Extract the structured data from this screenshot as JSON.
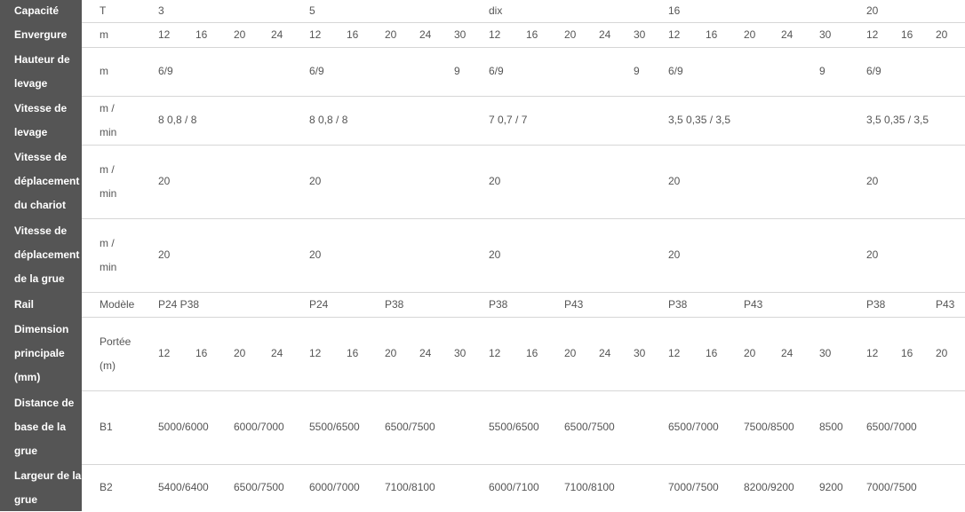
{
  "rows": [
    {
      "label": [
        "Capacité"
      ],
      "cells": [
        {
          "t": "T"
        },
        {
          "t": "3"
        },
        {
          "t": "5"
        },
        {
          "t": "dix"
        },
        {
          "t": "16"
        },
        {
          "t": "20"
        }
      ]
    },
    {
      "label": [
        "Envergure"
      ],
      "cells": [
        {
          "t": "m"
        },
        {
          "t": "12"
        },
        {
          "t": "16"
        },
        {
          "t": "20"
        },
        {
          "t": "24"
        },
        {
          "t": "12"
        },
        {
          "t": "16"
        },
        {
          "t": "20"
        },
        {
          "t": "24"
        },
        {
          "t": "30"
        },
        {
          "t": "12"
        },
        {
          "t": "16"
        },
        {
          "t": "20"
        },
        {
          "t": "24"
        },
        {
          "t": "30"
        },
        {
          "t": "12"
        },
        {
          "t": "16"
        },
        {
          "t": "20"
        },
        {
          "t": "24"
        },
        {
          "t": "30"
        },
        {
          "t": "12"
        },
        {
          "t": "16"
        },
        {
          "t": "20"
        }
      ]
    },
    {
      "label": [
        "Hauteur de",
        "levage"
      ],
      "cells": [
        {
          "t": "m"
        },
        {
          "t": "6/9"
        },
        {
          "t": "6/9"
        },
        {
          "t": "9"
        },
        {
          "t": "6/9"
        },
        {
          "t": "9"
        },
        {
          "t": "6/9"
        },
        {
          "t": "9"
        },
        {
          "t": "6/9"
        }
      ]
    },
    {
      "label": [
        "Vitesse de",
        "levage"
      ],
      "cells": [
        {
          "t": "m /\nmin"
        },
        {
          "t": "8 0,8 / 8"
        },
        {
          "t": "8 0,8 / 8"
        },
        {
          "t": "7 0,7 / 7"
        },
        {
          "t": "3,5 0,35 / 3,5"
        },
        {
          "t": "3,5 0,35 / 3,5"
        }
      ]
    },
    {
      "label": [
        "Vitesse de",
        "déplacement",
        "du chariot"
      ],
      "cells": [
        {
          "t": "m /\nmin"
        },
        {
          "t": "20"
        },
        {
          "t": "20"
        },
        {
          "t": "20"
        },
        {
          "t": "20"
        },
        {
          "t": "20"
        }
      ]
    },
    {
      "label": [
        "Vitesse de",
        "déplacement",
        "de la grue"
      ],
      "cells": [
        {
          "t": "m /\nmin"
        },
        {
          "t": "20"
        },
        {
          "t": "20"
        },
        {
          "t": "20"
        },
        {
          "t": "20"
        },
        {
          "t": "20"
        }
      ]
    },
    {
      "label": [
        "Rail"
      ],
      "cells": [
        {
          "t": "Modèle"
        },
        {
          "t": "P24 P38"
        },
        {
          "t": "P24"
        },
        {
          "t": "P38"
        },
        {
          "t": "P38"
        },
        {
          "t": "P43"
        },
        {
          "t": "P38"
        },
        {
          "t": "P43"
        },
        {
          "t": "P38"
        },
        {
          "t": "P43"
        }
      ]
    },
    {
      "label": [
        "Dimension",
        "principale",
        "(mm)"
      ],
      "cells": [
        {
          "t": "Portée\n(m)"
        },
        {
          "t": "12"
        },
        {
          "t": "16"
        },
        {
          "t": "20"
        },
        {
          "t": "24"
        },
        {
          "t": "12"
        },
        {
          "t": "16"
        },
        {
          "t": "20"
        },
        {
          "t": "24"
        },
        {
          "t": "30"
        },
        {
          "t": "12"
        },
        {
          "t": "16"
        },
        {
          "t": "20"
        },
        {
          "t": "24"
        },
        {
          "t": "30"
        },
        {
          "t": "12"
        },
        {
          "t": "16"
        },
        {
          "t": "20"
        },
        {
          "t": "24"
        },
        {
          "t": "30"
        },
        {
          "t": "12"
        },
        {
          "t": "16"
        },
        {
          "t": "20"
        }
      ]
    },
    {
      "label": [
        "Distance de",
        "base de la",
        "grue"
      ],
      "cells": [
        {
          "t": "B1"
        },
        {
          "t": "5000/6000"
        },
        {
          "t": "6000/7000"
        },
        {
          "t": "5500/6500"
        },
        {
          "t": "6500/7500"
        },
        {
          "t": "5500/6500"
        },
        {
          "t": "6500/7500"
        },
        {
          "t": "6500/7000"
        },
        {
          "t": "7500/8500"
        },
        {
          "t": "8500"
        },
        {
          "t": "6500/7000"
        }
      ]
    },
    {
      "label": [
        "Largeur de la",
        "grue"
      ],
      "cells": [
        {
          "t": "B2"
        },
        {
          "t": "5400/6400"
        },
        {
          "t": "6500/7500"
        },
        {
          "t": "6000/7000"
        },
        {
          "t": "7100/8100"
        },
        {
          "t": "6000/7100"
        },
        {
          "t": "7100/8100"
        },
        {
          "t": "7000/7500"
        },
        {
          "t": "8200/9200"
        },
        {
          "t": "9200"
        },
        {
          "t": "7000/7500"
        }
      ]
    }
  ]
}
